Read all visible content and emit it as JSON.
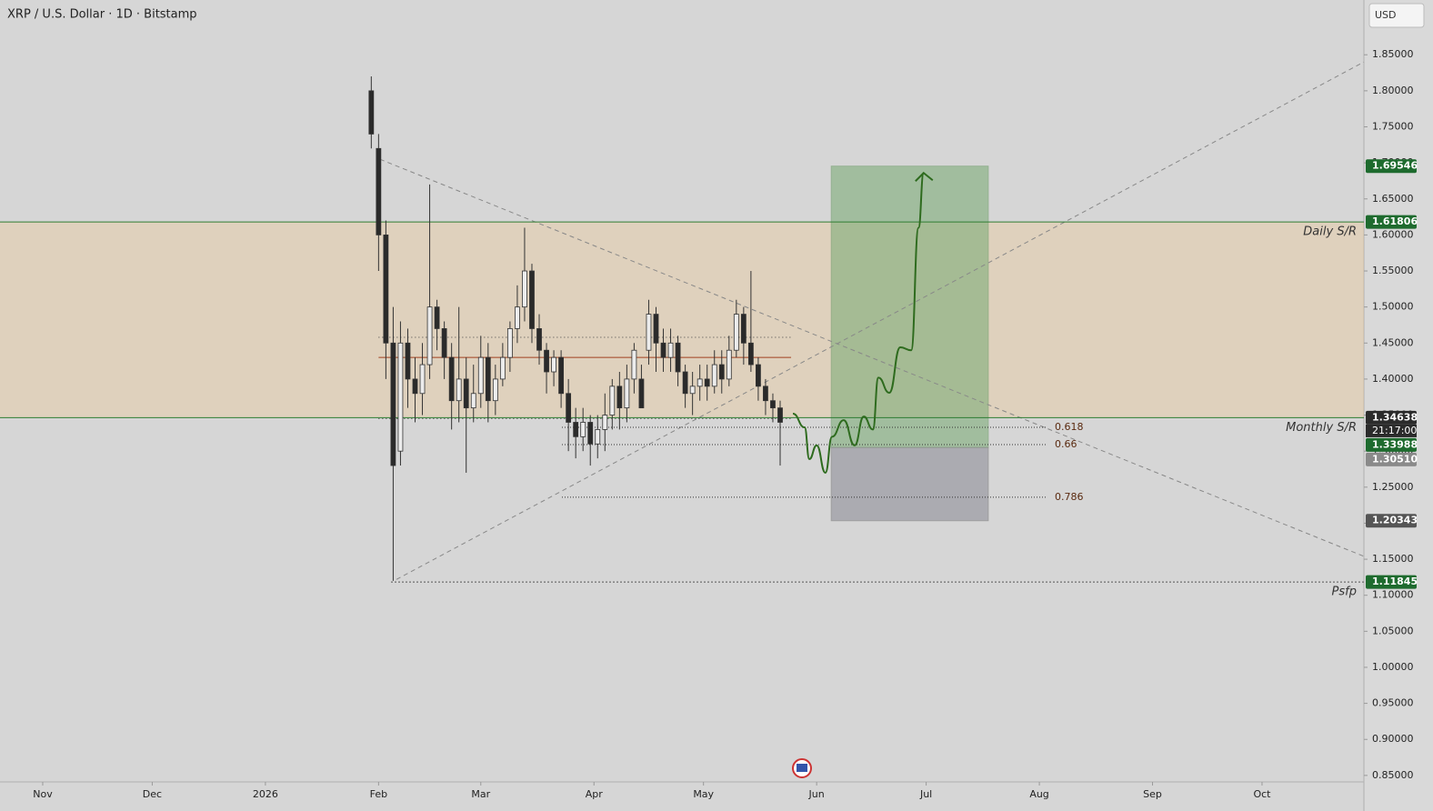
{
  "chart_data": {
    "type": "candlestick",
    "title": "XRP / U.S. Dollar · 1D · Bitstamp",
    "currency": "USD",
    "countdown": "21:17:00",
    "xlim": [
      -11.7,
      361.9
    ],
    "ylim": [
      0.841,
      1.926
    ],
    "xticks": [
      {
        "value": 0,
        "label": "Nov"
      },
      {
        "value": 30,
        "label": "Dec"
      },
      {
        "value": 61,
        "label": "2026"
      },
      {
        "value": 92,
        "label": "Feb"
      },
      {
        "value": 120,
        "label": "Mar"
      },
      {
        "value": 151,
        "label": "Apr"
      },
      {
        "value": 181,
        "label": "May"
      },
      {
        "value": 212,
        "label": "Jun"
      },
      {
        "value": 242,
        "label": "Jul"
      },
      {
        "value": 273,
        "label": "Aug"
      },
      {
        "value": 304,
        "label": "Sep"
      },
      {
        "value": 334,
        "label": "Oct"
      }
    ],
    "yticks": [
      {
        "value": 0.85,
        "label": "0.85000"
      },
      {
        "value": 0.9,
        "label": "0.90000"
      },
      {
        "value": 0.95,
        "label": "0.95000"
      },
      {
        "value": 1.0,
        "label": "1.00000"
      },
      {
        "value": 1.05,
        "label": "1.05000"
      },
      {
        "value": 1.1,
        "label": "1.10000"
      },
      {
        "value": 1.15,
        "label": "1.15000"
      },
      {
        "value": 1.2,
        "label": "1.20000"
      },
      {
        "value": 1.25,
        "label": "1.25000"
      },
      {
        "value": 1.3,
        "label": "1.30000"
      },
      {
        "value": 1.35,
        "label": "1.35000"
      },
      {
        "value": 1.4,
        "label": "1.40000"
      },
      {
        "value": 1.45,
        "label": "1.45000"
      },
      {
        "value": 1.5,
        "label": "1.50000"
      },
      {
        "value": 1.55,
        "label": "1.55000"
      },
      {
        "value": 1.6,
        "label": "1.60000"
      },
      {
        "value": 1.65,
        "label": "1.65000"
      },
      {
        "value": 1.7,
        "label": "1.70000"
      },
      {
        "value": 1.75,
        "label": "1.75000"
      },
      {
        "value": 1.8,
        "label": "1.80000"
      },
      {
        "value": 1.85,
        "label": "1.85000"
      }
    ],
    "x": [
      90,
      92,
      94,
      96,
      98,
      100,
      102,
      104,
      106,
      108,
      110,
      112,
      114,
      116,
      118,
      120,
      122,
      124,
      126,
      128,
      130,
      132,
      134,
      136,
      138,
      140,
      142,
      144,
      146,
      148,
      150,
      152,
      154,
      156,
      158,
      160,
      162,
      164,
      166,
      168,
      170,
      172,
      174,
      176,
      178,
      180,
      182,
      184,
      186,
      188,
      190,
      192,
      194,
      196,
      198,
      200,
      202
    ],
    "open": [
      1.8,
      1.72,
      1.6,
      1.45,
      1.3,
      1.45,
      1.4,
      1.38,
      1.42,
      1.5,
      1.47,
      1.43,
      1.37,
      1.4,
      1.36,
      1.38,
      1.43,
      1.37,
      1.4,
      1.43,
      1.47,
      1.5,
      1.55,
      1.47,
      1.44,
      1.41,
      1.43,
      1.38,
      1.34,
      1.32,
      1.34,
      1.31,
      1.33,
      1.35,
      1.39,
      1.36,
      1.4,
      1.4,
      1.44,
      1.49,
      1.45,
      1.43,
      1.45,
      1.41,
      1.38,
      1.39,
      1.4,
      1.39,
      1.42,
      1.4,
      1.44,
      1.49,
      1.45,
      1.42,
      1.39,
      1.37,
      1.36
    ],
    "high": [
      1.82,
      1.74,
      1.62,
      1.5,
      1.48,
      1.47,
      1.43,
      1.45,
      1.67,
      1.51,
      1.48,
      1.45,
      1.5,
      1.43,
      1.42,
      1.46,
      1.45,
      1.42,
      1.45,
      1.48,
      1.53,
      1.61,
      1.56,
      1.49,
      1.45,
      1.44,
      1.44,
      1.4,
      1.36,
      1.36,
      1.35,
      1.35,
      1.38,
      1.4,
      1.41,
      1.42,
      1.45,
      1.42,
      1.51,
      1.5,
      1.47,
      1.47,
      1.46,
      1.42,
      1.41,
      1.42,
      1.42,
      1.44,
      1.44,
      1.46,
      1.51,
      1.5,
      1.55,
      1.43,
      1.4,
      1.38,
      1.37
    ],
    "low": [
      1.72,
      1.55,
      1.4,
      1.12,
      1.28,
      1.36,
      1.34,
      1.35,
      1.4,
      1.44,
      1.4,
      1.33,
      1.34,
      1.27,
      1.34,
      1.36,
      1.34,
      1.35,
      1.39,
      1.41,
      1.45,
      1.48,
      1.45,
      1.42,
      1.38,
      1.39,
      1.36,
      1.3,
      1.29,
      1.3,
      1.28,
      1.29,
      1.3,
      1.33,
      1.33,
      1.34,
      1.38,
      1.36,
      1.42,
      1.41,
      1.41,
      1.41,
      1.39,
      1.36,
      1.35,
      1.37,
      1.37,
      1.38,
      1.38,
      1.39,
      1.43,
      1.42,
      1.41,
      1.37,
      1.35,
      1.34,
      1.28
    ],
    "close": [
      1.74,
      1.6,
      1.45,
      1.28,
      1.45,
      1.4,
      1.38,
      1.42,
      1.5,
      1.47,
      1.43,
      1.37,
      1.4,
      1.36,
      1.38,
      1.43,
      1.37,
      1.4,
      1.43,
      1.47,
      1.5,
      1.55,
      1.47,
      1.44,
      1.41,
      1.43,
      1.38,
      1.34,
      1.32,
      1.34,
      1.31,
      1.33,
      1.35,
      1.39,
      1.36,
      1.4,
      1.44,
      1.36,
      1.49,
      1.45,
      1.43,
      1.45,
      1.41,
      1.38,
      1.39,
      1.4,
      1.39,
      1.42,
      1.4,
      1.44,
      1.49,
      1.45,
      1.42,
      1.39,
      1.37,
      1.36,
      1.34
    ],
    "up_color": "#ececec",
    "down_color": "#2a2a2a",
    "levels": [
      {
        "name": "Daily S/R",
        "value": 1.61806,
        "color": "#2e7d32"
      },
      {
        "name": "Monthly S/R",
        "value": 1.34638,
        "color": "#2e7d32"
      },
      {
        "name": "Psfp",
        "value": 1.11845,
        "color": "#555555"
      }
    ],
    "zone_color": "#f0c890",
    "fib": [
      {
        "level": 0.618,
        "value": 1.333
      },
      {
        "level": 0.66,
        "value": 1.309
      },
      {
        "level": 0.786,
        "value": 1.236
      }
    ],
    "value_area": {
      "high": 1.458,
      "poc": 1.43,
      "low": 1.345,
      "from_x": 92,
      "to_x": 205
    },
    "trendlines": [
      {
        "x": [
          92.4,
          361.9
        ],
        "y": [
          1.705,
          1.154
        ]
      },
      {
        "x": [
          96.9,
          361.9
        ],
        "y": [
          1.122,
          1.84
        ]
      }
    ],
    "position": {
      "from_x": 216,
      "to_x": 259,
      "entry": 1.3051,
      "target": 1.69546,
      "stop": 1.20343
    },
    "projection": {
      "color": "#2e6b1e",
      "x": [
        205.5,
        208.7,
        210.0,
        212.0,
        214.4,
        216.2,
        219.4,
        222.4,
        224.9,
        227.4,
        228.9,
        231.9,
        234.9,
        237.9,
        239.9,
        241.3
      ],
      "y": [
        1.352,
        1.333,
        1.289,
        1.308,
        1.27,
        1.32,
        1.343,
        1.308,
        1.348,
        1.33,
        1.402,
        1.381,
        1.444,
        1.44,
        1.61,
        1.686
      ]
    },
    "price_labels": [
      {
        "value": 1.69546,
        "label": "1.69546",
        "color": "#1e6b2e"
      },
      {
        "value": 1.61806,
        "label": "1.61806",
        "color": "#1e6b2e"
      },
      {
        "value": 1.34638,
        "label": "1.34638",
        "color": "#2b2b2b"
      },
      {
        "value": 1.33988,
        "label": "1.33988",
        "color": "#1e6b2e"
      },
      {
        "value": 1.3051,
        "label": "1.30510",
        "color": "#8a8a8a"
      },
      {
        "value": 1.20343,
        "label": "1.20343",
        "color": "#555555"
      },
      {
        "value": 1.11845,
        "label": "1.11845",
        "color": "#1e6b2e"
      }
    ]
  }
}
